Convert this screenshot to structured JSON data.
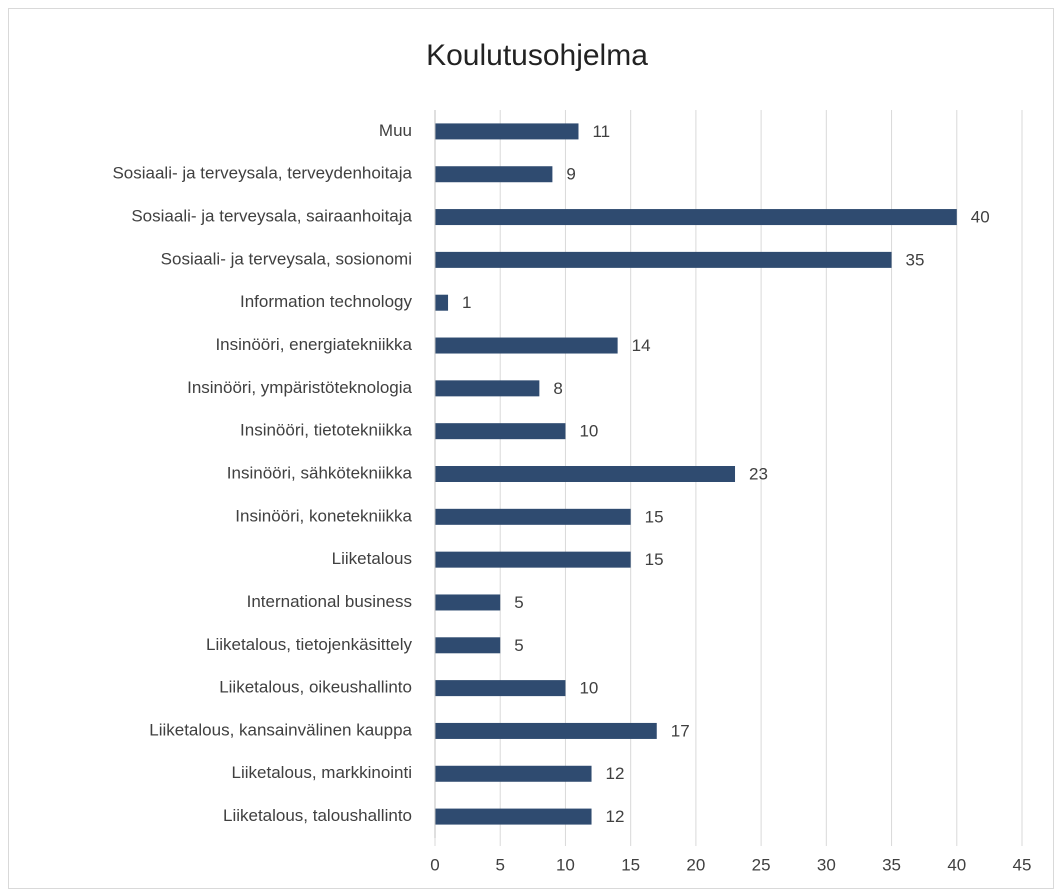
{
  "chart_data": {
    "type": "bar",
    "orientation": "horizontal",
    "title": "Koulutusohjelma",
    "categories": [
      "Muu",
      "Sosiaali- ja terveysala, terveydenhoitaja",
      "Sosiaali- ja terveysala, sairaanhoitaja",
      "Sosiaali- ja terveysala, sosionomi",
      "Information technology",
      "Insinööri, energiatekniikka",
      "Insinööri, ympäristöteknologia",
      "Insinööri, tietotekniikka",
      "Insinööri, sähkötekniikka",
      "Insinööri, konetekniikka",
      "Liiketalous",
      "International business",
      "Liiketalous, tietojenkäsittely",
      "Liiketalous, oikeushallinto",
      "Liiketalous, kansainvälinen kauppa",
      "Liiketalous, markkinointi",
      "Liiketalous, taloushallinto"
    ],
    "values": [
      11,
      9,
      40,
      35,
      1,
      14,
      8,
      10,
      23,
      15,
      15,
      5,
      5,
      10,
      17,
      12,
      12
    ],
    "color": "#2f4b70",
    "xlim": [
      0,
      45
    ],
    "xticks": [
      0,
      5,
      10,
      15,
      20,
      25,
      30,
      35,
      40,
      45
    ],
    "grid": true
  }
}
